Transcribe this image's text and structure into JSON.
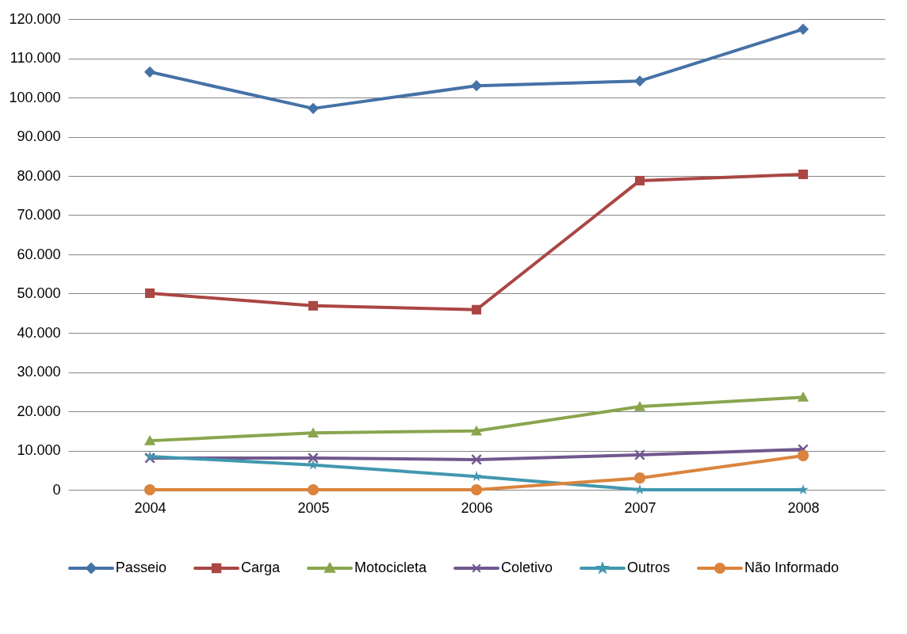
{
  "chart_data": {
    "type": "line",
    "categories": [
      "2004",
      "2005",
      "2006",
      "2007",
      "2008"
    ],
    "series": [
      {
        "name": "Passeio",
        "color": "#4572a7",
        "marker": "diamond",
        "values": [
          106500,
          97200,
          103000,
          104200,
          117400
        ]
      },
      {
        "name": "Carga",
        "color": "#aa4643",
        "marker": "square",
        "values": [
          50100,
          46900,
          45900,
          78800,
          80400
        ]
      },
      {
        "name": "Motocicleta",
        "color": "#89a54e",
        "marker": "triangle",
        "values": [
          12500,
          14500,
          15000,
          21200,
          23600
        ]
      },
      {
        "name": "Coletivo",
        "color": "#71588f",
        "marker": "cross",
        "values": [
          8100,
          8100,
          7700,
          8900,
          10300
        ]
      },
      {
        "name": "Outros",
        "color": "#4198af",
        "marker": "star",
        "values": [
          8500,
          6300,
          3400,
          0,
          0
        ]
      },
      {
        "name": "Não Informado",
        "color": "#db843d",
        "marker": "circle",
        "values": [
          0,
          0,
          0,
          3000,
          8700
        ]
      }
    ],
    "ylim": [
      0,
      120000
    ],
    "yticks": [
      {
        "value": 0,
        "label": "0"
      },
      {
        "value": 10000,
        "label": "10.000"
      },
      {
        "value": 20000,
        "label": "20.000"
      },
      {
        "value": 30000,
        "label": "30.000"
      },
      {
        "value": 40000,
        "label": "40.000"
      },
      {
        "value": 50000,
        "label": "50.000"
      },
      {
        "value": 60000,
        "label": "60.000"
      },
      {
        "value": 70000,
        "label": "70.000"
      },
      {
        "value": 80000,
        "label": "80.000"
      },
      {
        "value": 90000,
        "label": "90.000"
      },
      {
        "value": 100000,
        "label": "100.000"
      },
      {
        "value": 110000,
        "label": "110.000"
      },
      {
        "value": 120000,
        "label": "120.000"
      }
    ],
    "grid": "y",
    "legend": "bottom"
  }
}
